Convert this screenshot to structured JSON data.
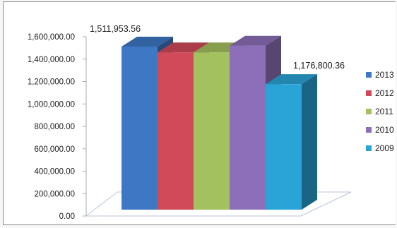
{
  "chart_data": {
    "type": "bar",
    "title": "",
    "xlabel": "",
    "ylabel": "",
    "ylim": [
      0,
      1600000
    ],
    "yticks": [
      "1,600,000.00",
      "1,400,000.00",
      "1,200,000.00",
      "1,000,000.00",
      "800,000.00",
      "600,000.00",
      "400,000.00",
      "200,000.00",
      "0.00"
    ],
    "grid": false,
    "legend_position": "right",
    "series": [
      {
        "name": "2013",
        "value": 1511953.56,
        "color": "#3e78c4",
        "data_label": "1,511,953.56"
      },
      {
        "name": "2012",
        "value": 1460000,
        "color": "#d04a5a",
        "data_label": ""
      },
      {
        "name": "2011",
        "value": 1460000,
        "color": "#a3c15e",
        "data_label": ""
      },
      {
        "name": "2010",
        "value": 1520000,
        "color": "#8c6fb8",
        "data_label": ""
      },
      {
        "name": "2009",
        "value": 1176800.36,
        "color": "#2aa3d6",
        "data_label": "1,176,800.36"
      }
    ]
  }
}
